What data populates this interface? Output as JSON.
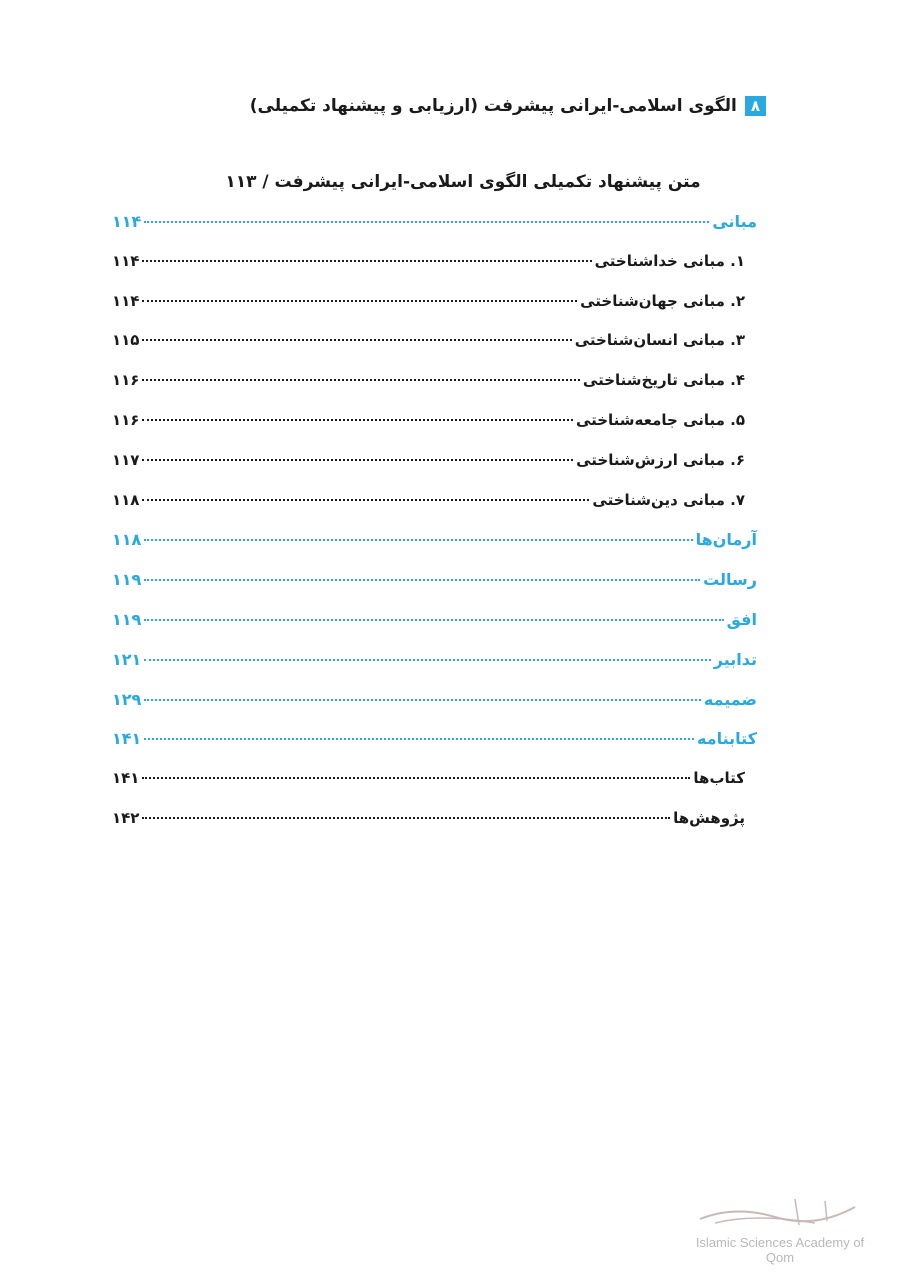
{
  "running_head": {
    "page_number": "۸",
    "title": "الگوی اسلامی-ایرانی پیشرفت (ارزیابی و پیشنهاد تکمیلی)"
  },
  "section_title": "متن پیشنهاد تکمیلی الگوی اسلامی-ایرانی پیشرفت / ۱۱۳",
  "toc": [
    {
      "title": "مبانی",
      "page": "۱۱۴",
      "level": "main"
    },
    {
      "title": "۱. مبانی خداشناختی",
      "page": "۱۱۴",
      "level": "sub"
    },
    {
      "title": "۲. مبانی جهان‌شناختی",
      "page": "۱۱۴",
      "level": "sub"
    },
    {
      "title": "۳. مبانی انسان‌شناختی",
      "page": "۱۱۵",
      "level": "sub"
    },
    {
      "title": "۴. مبانی تاریخ‌شناختی",
      "page": "۱۱۶",
      "level": "sub"
    },
    {
      "title": "۵. مبانی جامعه‌شناختی",
      "page": "۱۱۶",
      "level": "sub"
    },
    {
      "title": "۶. مبانی ارزش‌شناختی",
      "page": "۱۱۷",
      "level": "sub"
    },
    {
      "title": "۷. مبانی دین‌شناختی",
      "page": "۱۱۸",
      "level": "sub"
    },
    {
      "title": "آرمان‌ها",
      "page": "۱۱۸",
      "level": "main"
    },
    {
      "title": "رسالت",
      "page": "۱۱۹",
      "level": "main"
    },
    {
      "title": "افق",
      "page": "۱۱۹",
      "level": "main"
    },
    {
      "title": "تدابیر",
      "page": "۱۲۱",
      "level": "main"
    },
    {
      "title": "ضمیمه",
      "page": "۱۲۹",
      "level": "main"
    },
    {
      "title": "کتابنامه",
      "page": "۱۴۱",
      "level": "main"
    },
    {
      "title": "کتاب‌ها",
      "page": "۱۴۱",
      "level": "sub"
    },
    {
      "title": "پژوهش‌ها",
      "page": "۱۴۲",
      "level": "sub"
    }
  ],
  "watermark": {
    "logo_text": "فرهنگستان علوم اسلامی قم",
    "english": "Islamic Sciences Academy of Qom"
  },
  "colors": {
    "accent": "#29a9e0"
  }
}
